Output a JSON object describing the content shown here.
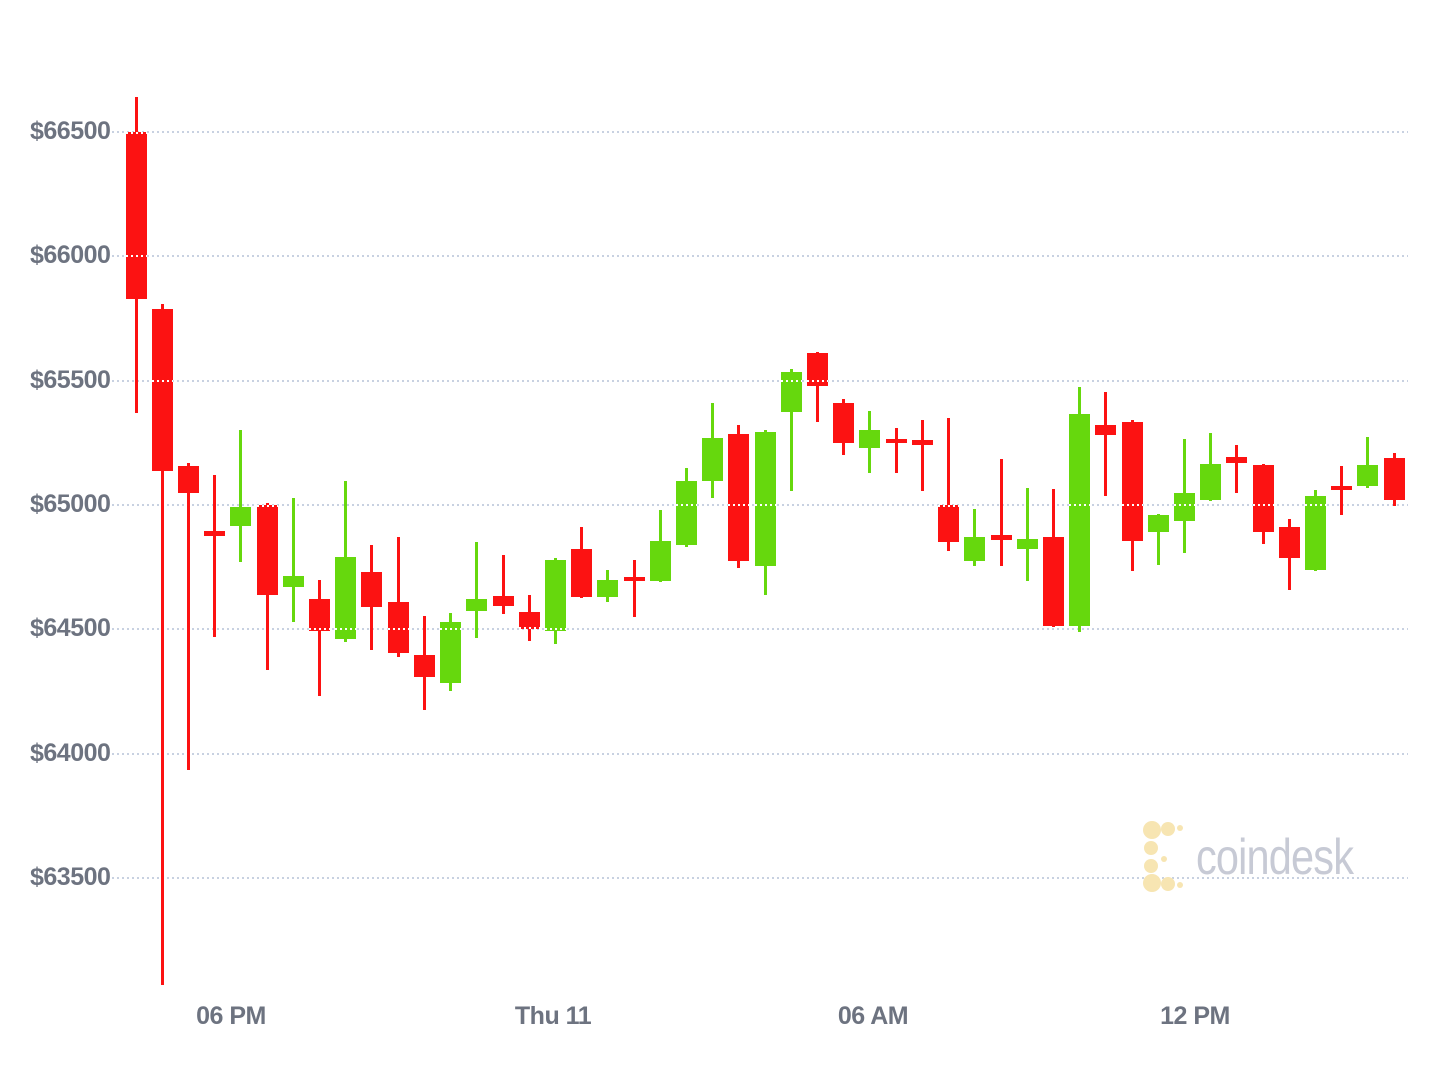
{
  "chart_data": {
    "type": "candlestick",
    "title": "",
    "y_axis": {
      "tick_labels": [
        "$66500",
        "$66000",
        "$65500",
        "$65000",
        "$64500",
        "$64000",
        "$63500"
      ],
      "tick_prices": [
        66500,
        66000,
        65500,
        65000,
        64500,
        64000,
        63500
      ],
      "min": 63500,
      "max": 66500,
      "tick_step": 500,
      "grid": "dotted"
    },
    "x_axis": {
      "tick_labels": [
        "06 PM",
        "Thu 11",
        "06 AM",
        "12 PM"
      ],
      "tick_candle_indices": [
        4,
        16,
        28,
        40
      ]
    },
    "series": [
      {
        "name": "price-candles",
        "ohlc": [
          [
            66500,
            66640,
            65370,
            65830
          ],
          [
            65790,
            65810,
            63070,
            65135
          ],
          [
            65155,
            65170,
            63935,
            65050
          ],
          [
            64895,
            65120,
            64470,
            64875
          ],
          [
            64915,
            65300,
            64770,
            64990
          ],
          [
            65000,
            65010,
            64335,
            64640
          ],
          [
            64670,
            65030,
            64530,
            64715
          ],
          [
            64620,
            64700,
            64230,
            64495
          ],
          [
            64460,
            65095,
            64450,
            64790
          ],
          [
            64730,
            64840,
            64415,
            64590
          ],
          [
            64610,
            64870,
            64390,
            64405
          ],
          [
            64395,
            64555,
            64175,
            64310
          ],
          [
            64285,
            64565,
            64250,
            64530
          ],
          [
            64575,
            64850,
            64465,
            64620
          ],
          [
            64635,
            64800,
            64560,
            64595
          ],
          [
            64570,
            64640,
            64455,
            64500
          ],
          [
            64495,
            64785,
            64440,
            64780
          ],
          [
            64825,
            64910,
            64625,
            64630
          ],
          [
            64630,
            64740,
            64610,
            64700
          ],
          [
            64710,
            64780,
            64550,
            64700
          ],
          [
            64695,
            64980,
            64690,
            64855
          ],
          [
            64840,
            65150,
            64830,
            65095
          ],
          [
            65095,
            65410,
            65030,
            65270
          ],
          [
            65285,
            65320,
            64745,
            64775
          ],
          [
            64755,
            65300,
            64640,
            65295
          ],
          [
            65375,
            65545,
            65055,
            65535
          ],
          [
            65610,
            65615,
            65335,
            65480
          ],
          [
            65410,
            65425,
            65200,
            65250
          ],
          [
            65230,
            65380,
            65130,
            65300
          ],
          [
            65265,
            65310,
            65130,
            65255
          ],
          [
            65260,
            65340,
            65055,
            65240
          ],
          [
            65000,
            65350,
            64815,
            64850
          ],
          [
            64775,
            64985,
            64755,
            64870
          ],
          [
            64880,
            65185,
            64755,
            64860
          ],
          [
            64825,
            65070,
            64695,
            64865
          ],
          [
            64870,
            65065,
            64510,
            64515
          ],
          [
            64515,
            65475,
            64490,
            65365
          ],
          [
            65320,
            65455,
            65035,
            65280
          ],
          [
            65335,
            65340,
            64735,
            64855
          ],
          [
            64890,
            64965,
            64760,
            64960
          ],
          [
            64935,
            65265,
            64805,
            65050
          ],
          [
            65020,
            65290,
            65015,
            65165
          ],
          [
            65195,
            65240,
            65050,
            65170
          ],
          [
            65160,
            65165,
            64845,
            64890
          ],
          [
            64910,
            64945,
            64660,
            64785
          ],
          [
            64740,
            65060,
            64735,
            65035
          ],
          [
            65075,
            65155,
            64960,
            65065
          ],
          [
            65075,
            65275,
            65070,
            65160
          ],
          [
            65190,
            65210,
            64995,
            65020
          ]
        ]
      }
    ],
    "colors": {
      "up_candle": "#66d80d",
      "down_candle": "#fc1212",
      "gridline": "#c8d1e1",
      "axis_label": "#6d7380",
      "watermark_text_color": "#c7cad5",
      "watermark_logo_color": "#f7e5b2"
    },
    "legend": "none",
    "watermark": {
      "text": "coindesk"
    }
  }
}
